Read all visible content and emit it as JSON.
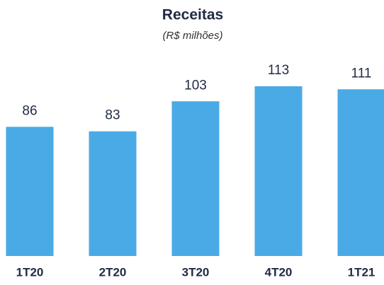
{
  "chart_data": {
    "type": "bar",
    "title": "Receitas",
    "subtitle": "(R$ milhões)",
    "categories": [
      "1T20",
      "2T20",
      "3T20",
      "4T20",
      "1T21"
    ],
    "values": [
      86,
      83,
      103,
      113,
      111
    ],
    "color": "#4aaae6"
  }
}
